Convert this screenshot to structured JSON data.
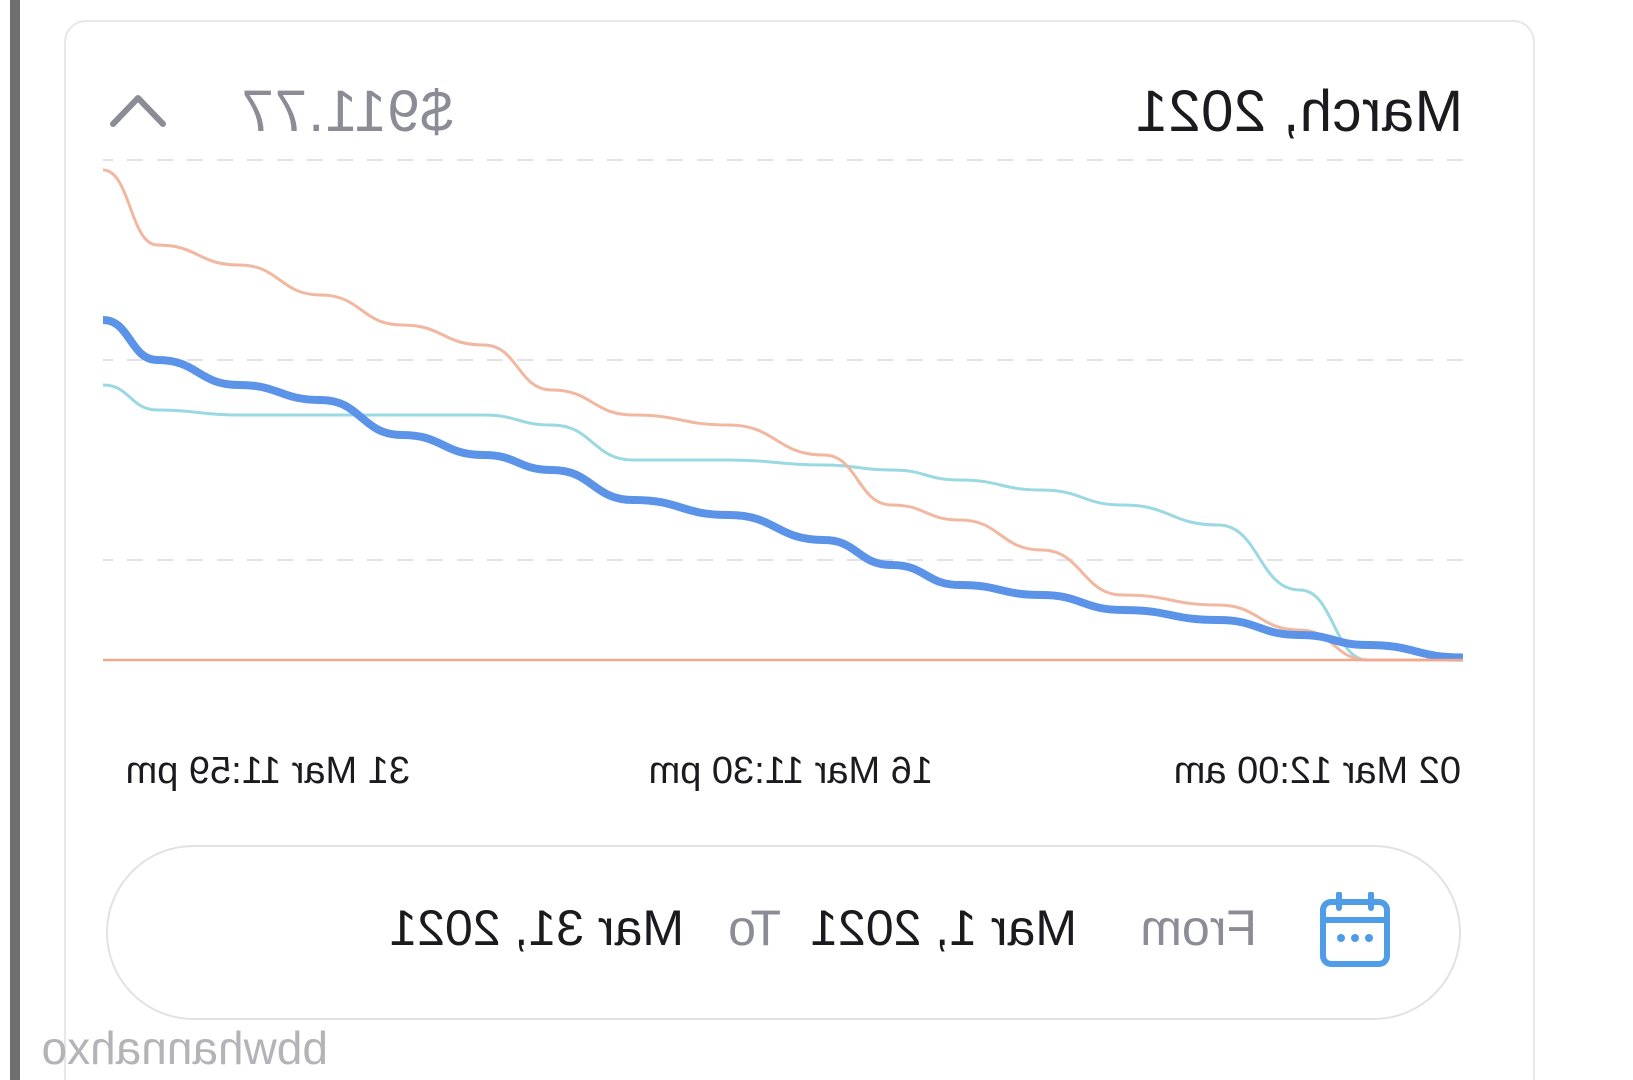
{
  "card": {
    "title": "March, 2021",
    "total": "$911.77"
  },
  "chart_data": {
    "type": "line",
    "title": "",
    "xlabel": "",
    "ylabel": "",
    "x_tick_labels": [
      "02 Mar 12:00 am",
      "16 Mar 11:30 pm",
      "31 Mar 11:59 pm"
    ],
    "x": [
      0,
      0.07,
      0.12,
      0.18,
      0.25,
      0.31,
      0.37,
      0.42,
      0.47,
      0.54,
      0.61,
      0.67,
      0.72,
      0.78,
      0.84,
      0.9,
      0.96,
      1.0
    ],
    "ylim": [
      0,
      100
    ],
    "grid": true,
    "series": [
      {
        "color": "#5b93e8",
        "values": [
          0.5,
          3,
          5,
          8,
          10,
          13,
          15,
          19,
          24,
          29,
          32,
          38,
          41,
          45,
          52,
          55,
          60,
          68
        ]
      },
      {
        "color": "#f2b7a0",
        "values": [
          0,
          0,
          6,
          11,
          13,
          22,
          28,
          31,
          41,
          47,
          49,
          54,
          63,
          67,
          73,
          79,
          83,
          98
        ]
      },
      {
        "color": "#9ad8e2",
        "values": [
          0,
          0,
          14,
          27,
          31,
          34,
          36,
          38,
          39,
          40,
          40,
          47,
          49,
          49,
          49,
          49,
          50,
          55
        ]
      }
    ]
  },
  "date_range": {
    "from_label": "From",
    "start_date": "Mar 1, 2021",
    "to_label": "To",
    "end_date": "Mar 31, 2021"
  },
  "watermark": "bbwhannahxo",
  "colors": {
    "accent": "#5b93e8",
    "baseline": "#f0a98c",
    "calendar_icon": "#4f9de6"
  }
}
